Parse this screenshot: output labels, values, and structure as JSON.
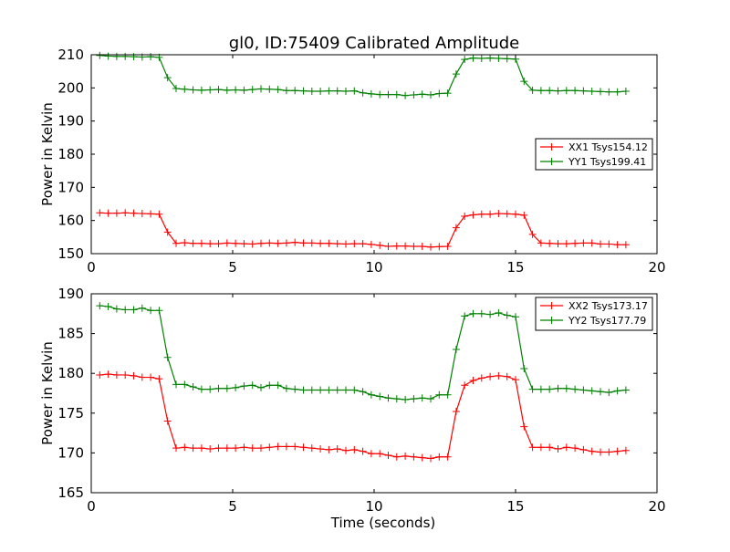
{
  "title": "gl0, ID:75409 Calibrated Amplitude",
  "chart_data": [
    {
      "type": "line",
      "title": "gl0, ID:75409 Calibrated Amplitude",
      "xlabel": "",
      "ylabel": "Power in Kelvin",
      "xlim": [
        0,
        20
      ],
      "ylim": [
        150,
        210
      ],
      "xticks": [
        "0",
        "5",
        "10",
        "15",
        "20"
      ],
      "yticks": [
        "150",
        "160",
        "170",
        "180",
        "190",
        "200",
        "210"
      ],
      "grid": false,
      "legend_position": "center-right",
      "x": [
        0.3,
        0.6,
        0.9,
        1.2,
        1.5,
        1.8,
        2.1,
        2.4,
        2.7,
        3.0,
        3.3,
        3.6,
        3.9,
        4.2,
        4.5,
        4.8,
        5.1,
        5.4,
        5.7,
        6.0,
        6.3,
        6.6,
        6.9,
        7.2,
        7.5,
        7.8,
        8.1,
        8.4,
        8.7,
        9.0,
        9.3,
        9.6,
        9.9,
        10.2,
        10.5,
        10.8,
        11.1,
        11.4,
        11.7,
        12.0,
        12.3,
        12.6,
        12.9,
        13.2,
        13.5,
        13.8,
        14.1,
        14.4,
        14.7,
        15.0,
        15.3,
        15.6,
        15.9,
        16.2,
        16.5,
        16.8,
        17.1,
        17.4,
        17.7,
        18.0,
        18.3,
        18.6,
        18.9
      ],
      "series": [
        {
          "name": "XX1 Tsys154.12",
          "color": "#ff0000",
          "values": [
            162.3,
            162.2,
            162.2,
            162.3,
            162.2,
            162.1,
            162.0,
            161.9,
            156.5,
            153.1,
            153.3,
            153.1,
            153.1,
            153.0,
            153.0,
            153.2,
            153.1,
            153.0,
            152.9,
            153.1,
            153.2,
            153.1,
            153.2,
            153.4,
            153.2,
            153.2,
            153.1,
            153.1,
            153.0,
            152.9,
            153.0,
            153.0,
            152.8,
            152.5,
            152.2,
            152.3,
            152.3,
            152.2,
            152.2,
            152.0,
            152.1,
            152.2,
            157.8,
            161.3,
            161.7,
            161.9,
            161.9,
            162.1,
            162.0,
            161.9,
            161.6,
            155.8,
            153.2,
            153.1,
            153.0,
            153.0,
            153.1,
            153.2,
            153.2,
            152.9,
            152.9,
            152.7,
            152.7
          ]
        },
        {
          "name": "YY1 Tsys199.41",
          "color": "#008000",
          "values": [
            209.8,
            209.6,
            209.5,
            209.5,
            209.4,
            209.3,
            209.4,
            209.2,
            203.1,
            199.8,
            199.6,
            199.4,
            199.3,
            199.4,
            199.5,
            199.3,
            199.4,
            199.3,
            199.5,
            199.7,
            199.6,
            199.5,
            199.2,
            199.2,
            199.1,
            199.0,
            199.0,
            199.1,
            199.1,
            199.0,
            199.1,
            198.5,
            198.2,
            198.0,
            198.0,
            198.0,
            197.7,
            197.9,
            198.1,
            197.9,
            198.3,
            198.4,
            204.2,
            208.6,
            209.0,
            208.9,
            209.0,
            208.9,
            208.8,
            208.7,
            202.0,
            199.3,
            199.2,
            199.2,
            199.1,
            199.2,
            199.2,
            199.1,
            199.0,
            198.9,
            198.8,
            198.8,
            199.0
          ]
        }
      ]
    },
    {
      "type": "line",
      "title": "",
      "xlabel": "Time (seconds)",
      "ylabel": "Power in Kelvin",
      "xlim": [
        0,
        20
      ],
      "ylim": [
        165,
        190
      ],
      "xticks": [
        "0",
        "5",
        "10",
        "15",
        "20"
      ],
      "yticks": [
        "165",
        "170",
        "175",
        "180",
        "185",
        "190"
      ],
      "grid": false,
      "legend_position": "top-right",
      "x": [
        0.3,
        0.6,
        0.9,
        1.2,
        1.5,
        1.8,
        2.1,
        2.4,
        2.7,
        3.0,
        3.3,
        3.6,
        3.9,
        4.2,
        4.5,
        4.8,
        5.1,
        5.4,
        5.7,
        6.0,
        6.3,
        6.6,
        6.9,
        7.2,
        7.5,
        7.8,
        8.1,
        8.4,
        8.7,
        9.0,
        9.3,
        9.6,
        9.9,
        10.2,
        10.5,
        10.8,
        11.1,
        11.4,
        11.7,
        12.0,
        12.3,
        12.6,
        12.9,
        13.2,
        13.5,
        13.8,
        14.1,
        14.4,
        14.7,
        15.0,
        15.3,
        15.6,
        15.9,
        16.2,
        16.5,
        16.8,
        17.1,
        17.4,
        17.7,
        18.0,
        18.3,
        18.6,
        18.9
      ],
      "series": [
        {
          "name": "XX2 Tsys173.17",
          "color": "#ff0000",
          "values": [
            179.8,
            179.9,
            179.8,
            179.8,
            179.7,
            179.5,
            179.5,
            179.3,
            174.0,
            170.6,
            170.7,
            170.6,
            170.6,
            170.5,
            170.6,
            170.6,
            170.6,
            170.7,
            170.6,
            170.6,
            170.7,
            170.8,
            170.8,
            170.8,
            170.7,
            170.6,
            170.5,
            170.4,
            170.5,
            170.3,
            170.4,
            170.2,
            169.9,
            169.9,
            169.7,
            169.5,
            169.6,
            169.5,
            169.4,
            169.3,
            169.5,
            169.5,
            175.2,
            178.5,
            179.1,
            179.4,
            179.6,
            179.7,
            179.6,
            179.2,
            173.3,
            170.7,
            170.7,
            170.7,
            170.5,
            170.7,
            170.6,
            170.4,
            170.2,
            170.1,
            170.1,
            170.2,
            170.3
          ]
        },
        {
          "name": "YY2 Tsys177.79",
          "color": "#008000",
          "values": [
            188.5,
            188.4,
            188.1,
            188.0,
            188.0,
            188.2,
            187.9,
            187.9,
            182.0,
            178.6,
            178.6,
            178.3,
            178.0,
            178.0,
            178.1,
            178.1,
            178.2,
            178.4,
            178.5,
            178.2,
            178.5,
            178.5,
            178.1,
            178.0,
            177.9,
            177.9,
            177.9,
            177.9,
            177.9,
            177.9,
            177.9,
            177.7,
            177.3,
            177.1,
            176.9,
            176.8,
            176.7,
            176.8,
            176.9,
            176.8,
            177.3,
            177.3,
            183.0,
            187.2,
            187.5,
            187.5,
            187.4,
            187.6,
            187.3,
            187.1,
            180.6,
            178.0,
            178.0,
            178.0,
            178.1,
            178.1,
            178.0,
            177.9,
            177.8,
            177.7,
            177.6,
            177.8,
            177.9
          ]
        }
      ]
    }
  ]
}
